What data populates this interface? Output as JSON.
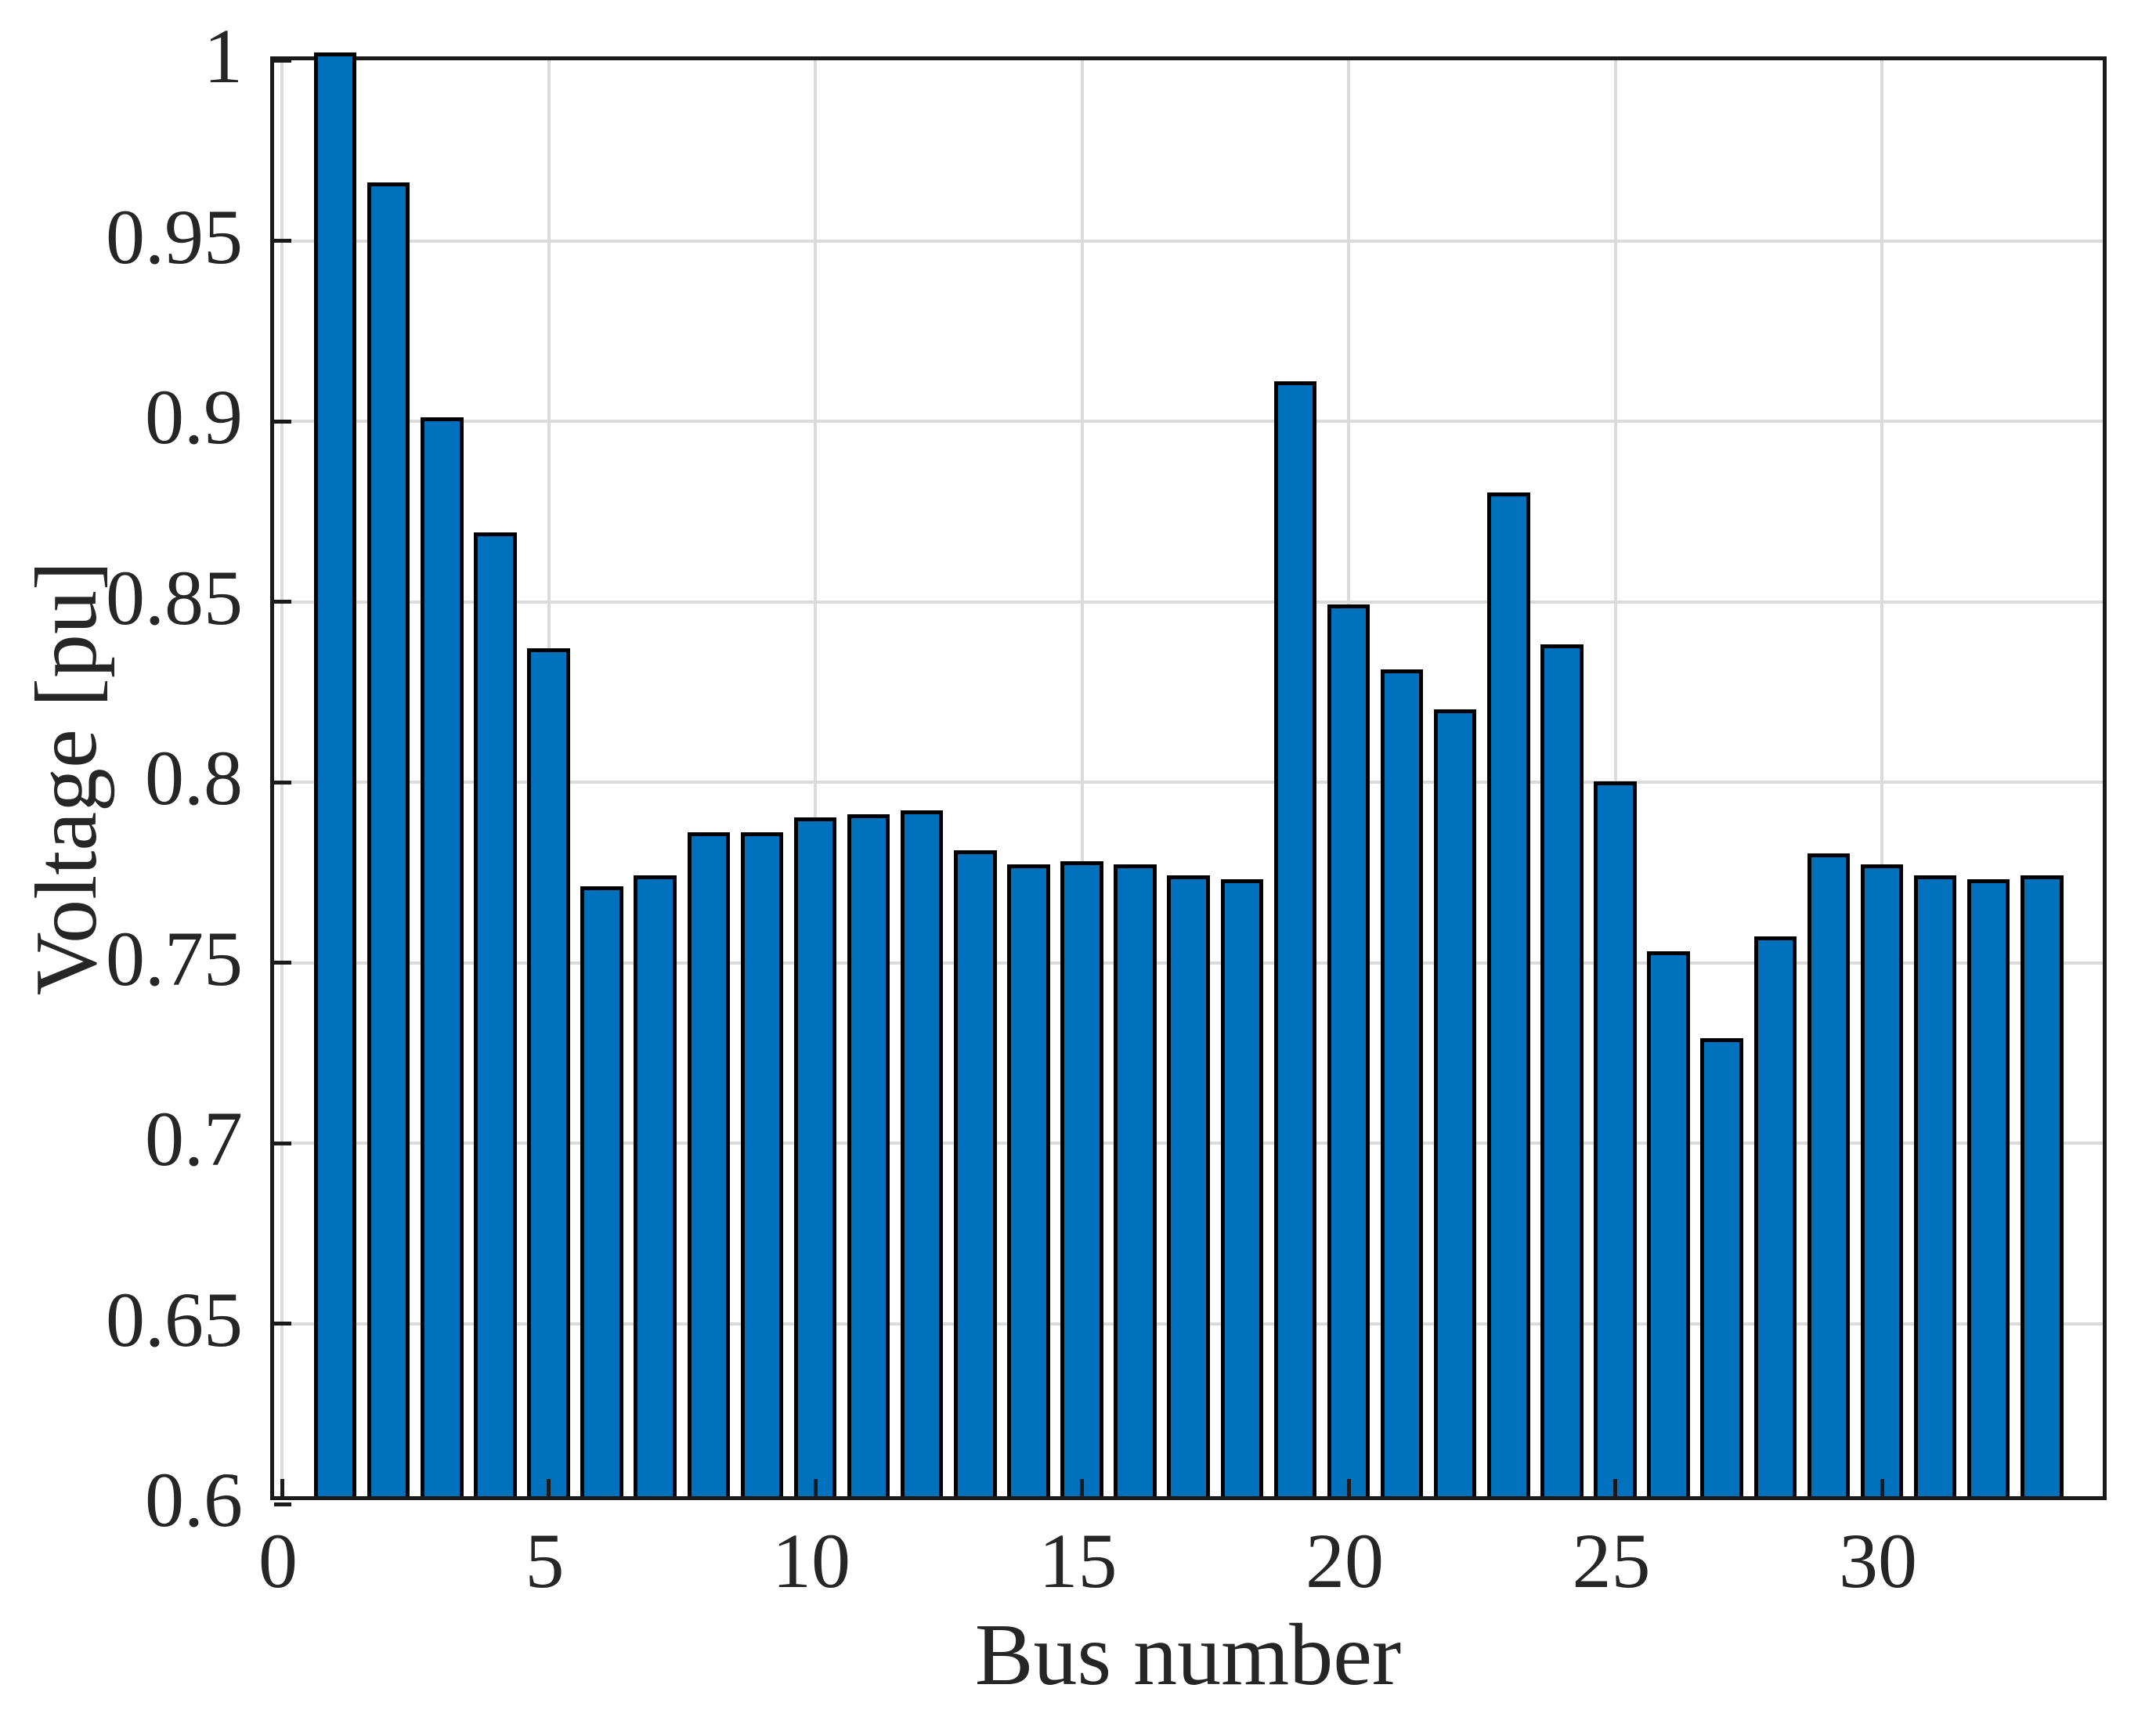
{
  "chart_data": {
    "type": "bar",
    "title": "",
    "xlabel": "Bus number",
    "ylabel": "Voltage [pu]",
    "x": [
      1,
      2,
      3,
      4,
      5,
      6,
      7,
      8,
      9,
      10,
      11,
      12,
      13,
      14,
      15,
      16,
      17,
      18,
      19,
      20,
      21,
      22,
      23,
      24,
      25,
      26,
      27,
      28,
      29,
      30,
      31,
      32,
      33
    ],
    "values": [
      1.0,
      0.964,
      0.899,
      0.867,
      0.835,
      0.769,
      0.772,
      0.784,
      0.784,
      0.788,
      0.789,
      0.79,
      0.779,
      0.775,
      0.776,
      0.775,
      0.772,
      0.771,
      0.909,
      0.847,
      0.829,
      0.818,
      0.878,
      0.836,
      0.798,
      0.751,
      0.727,
      0.755,
      0.778,
      0.775,
      0.772,
      0.771,
      0.772
    ],
    "ylim": [
      0.6,
      1.0
    ],
    "xlim": [
      -0.15,
      34.3
    ],
    "xticks": [
      0,
      5,
      10,
      15,
      20,
      25,
      30
    ],
    "xtick_labels": [
      "0",
      "5",
      "10",
      "15",
      "20",
      "25",
      "30"
    ],
    "yticks": [
      0.6,
      0.65,
      0.7,
      0.75,
      0.8,
      0.85,
      0.9,
      0.95,
      1.0
    ],
    "ytick_labels": [
      "0.6",
      "0.65",
      "0.7",
      "0.75",
      "0.8",
      "0.85",
      "0.9",
      "0.95",
      "1"
    ],
    "grid": true,
    "legend_position": "none",
    "bar_color": "#0072BD",
    "bar_edge_color": "#000000",
    "grid_color": "#dbdbdb",
    "axis_color": "#1a1a1a",
    "bar_width_fraction": 0.8
  }
}
